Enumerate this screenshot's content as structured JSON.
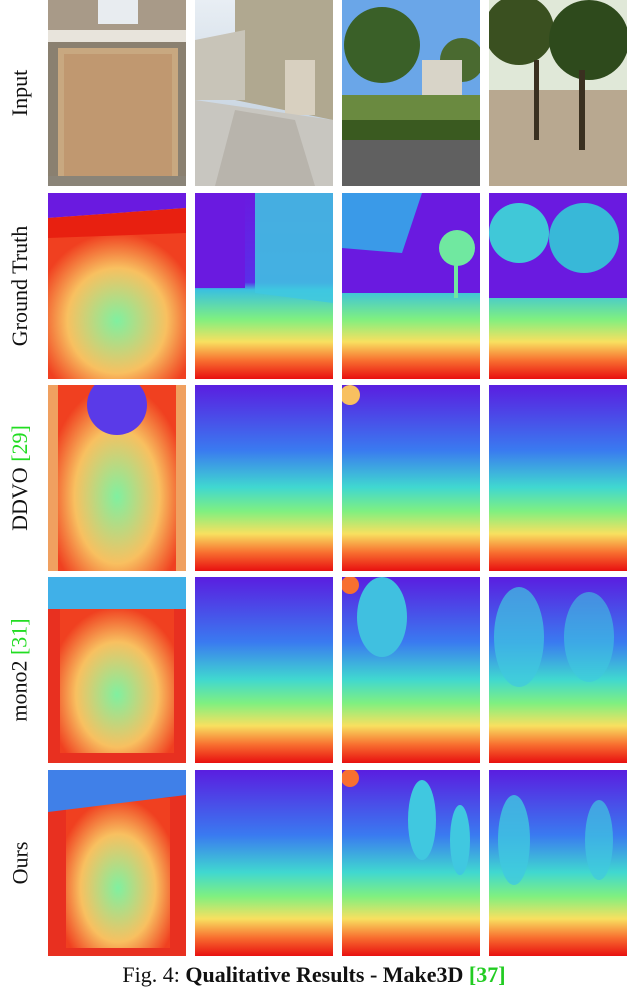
{
  "figure": {
    "rows": [
      {
        "label": "Input",
        "ref": ""
      },
      {
        "label": "Ground Truth",
        "ref": ""
      },
      {
        "label": "DDVO ",
        "ref": "[29]"
      },
      {
        "label": "mono2 ",
        "ref": "[31]"
      },
      {
        "label": "Ours",
        "ref": ""
      }
    ],
    "caption": {
      "prefix": "Fig. 4: ",
      "bold": "Qualitative Results - Make3D ",
      "ref": "[37]"
    }
  },
  "colors": {
    "depth_far": "#5a1ee0",
    "depth_mid": "#40e0c0",
    "depth_near": "#ee1e10",
    "ref_green": "#22dd22"
  }
}
